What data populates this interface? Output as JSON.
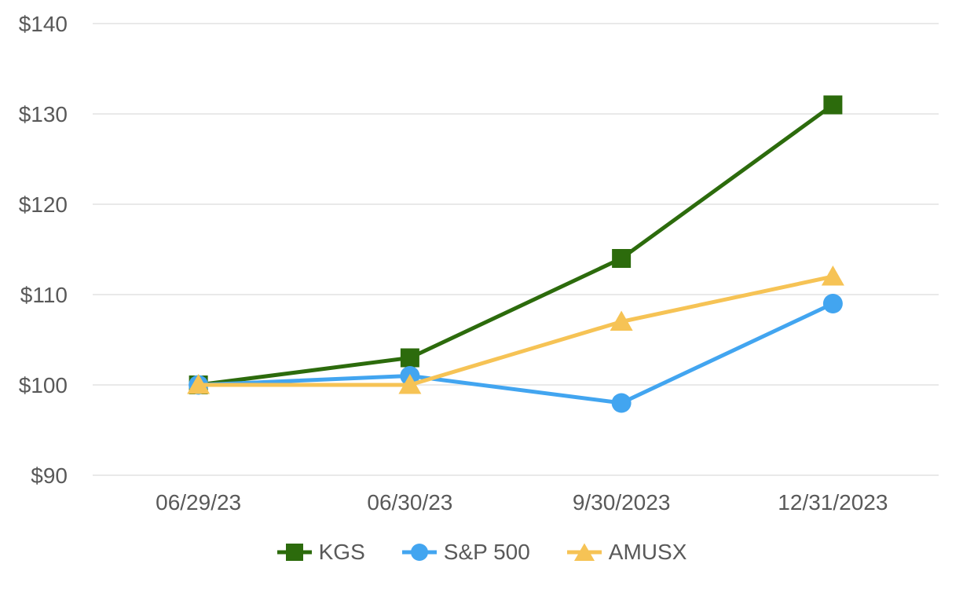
{
  "chart_data": {
    "type": "line",
    "title": "",
    "xlabel": "",
    "ylabel": "",
    "x_categories": [
      "06/29/23",
      "06/30/23",
      "9/30/2023",
      "12/31/2023"
    ],
    "series": [
      {
        "name": "KGS",
        "marker": "square",
        "color": "#2c6b0c",
        "values": [
          100,
          103,
          114,
          131
        ]
      },
      {
        "name": "S&P 500",
        "marker": "circle",
        "color": "#42a5f0",
        "values": [
          100,
          101,
          98,
          109
        ]
      },
      {
        "name": "AMUSX",
        "marker": "triangle",
        "color": "#f6c355",
        "values": [
          100,
          100,
          107,
          112
        ]
      }
    ],
    "y_ticks": [
      90,
      100,
      110,
      120,
      130,
      140
    ],
    "y_tick_labels": [
      "$90",
      "$100",
      "$110",
      "$120",
      "$130",
      "$140"
    ],
    "ylim": [
      90,
      140
    ],
    "grid": "horizontal",
    "legend_position": "bottom"
  },
  "style": {
    "background": "#ffffff",
    "gridline_color": "#e9e9e9",
    "axis_text_color": "#595959"
  }
}
